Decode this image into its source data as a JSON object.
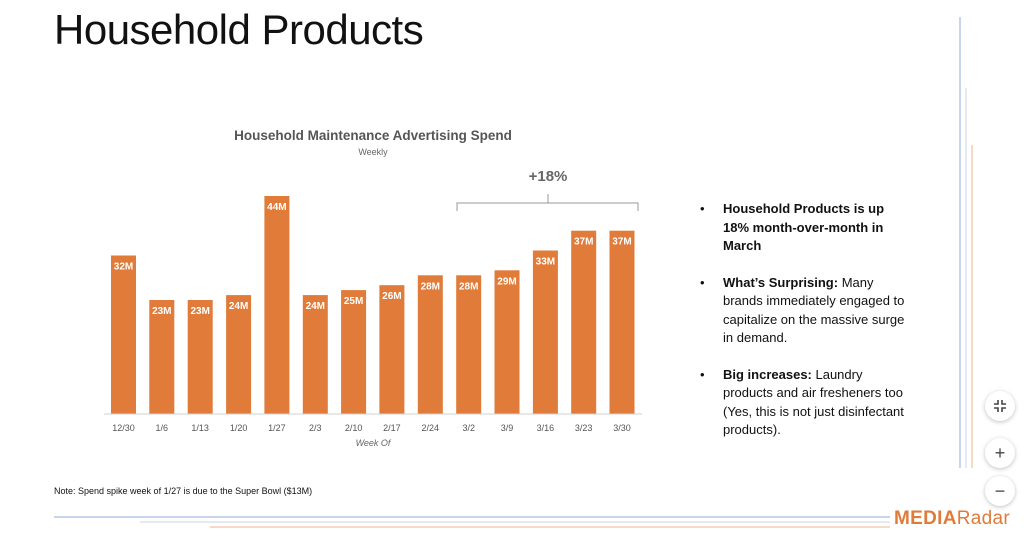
{
  "page": {
    "title": "Household Products",
    "note": "Note: Spend spike week of 1/27 is due to the Super Bowl ($13M)",
    "logo_part1": "MEDIA",
    "logo_part2": "Radar"
  },
  "bullets": [
    {
      "bold": "Household Products is up 18% month-over-month in March",
      "text": ""
    },
    {
      "bold": "What’s Surprising:",
      "text": " Many brands immediately engaged to capitalize on the massive surge in demand."
    },
    {
      "bold": "Big increases:",
      "text": " Laundry products and air fresheners too (Yes, this is not just disinfectant products)."
    }
  ],
  "controls": {
    "collapse_icon": "collapse-arrows-icon",
    "zoom_in_icon": "plus-icon",
    "zoom_out_icon": "minus-icon"
  },
  "colors": {
    "bar": "#e07b39",
    "accent_blue": "#8fa8d8",
    "accent_orange": "#f2b48a"
  },
  "chart_data": {
    "type": "bar",
    "title": "Household Maintenance Advertising Spend",
    "subtitle": "Weekly",
    "xlabel": "Week Of",
    "ylabel": "",
    "categories": [
      "12/30",
      "1/6",
      "1/13",
      "1/20",
      "1/27",
      "2/3",
      "2/10",
      "2/17",
      "2/24",
      "3/2",
      "3/9",
      "3/16",
      "3/23",
      "3/30"
    ],
    "values": [
      32,
      23,
      23,
      24,
      44,
      24,
      25,
      26,
      28,
      28,
      29,
      33,
      37,
      37
    ],
    "value_labels": [
      "32M",
      "23M",
      "23M",
      "24M",
      "44M",
      "24M",
      "25M",
      "26M",
      "28M",
      "28M",
      "29M",
      "33M",
      "37M",
      "37M"
    ],
    "ylim": [
      0,
      50
    ],
    "grid": false,
    "annotation": {
      "text": "+18%",
      "from": "3/2",
      "to": "3/30"
    }
  }
}
